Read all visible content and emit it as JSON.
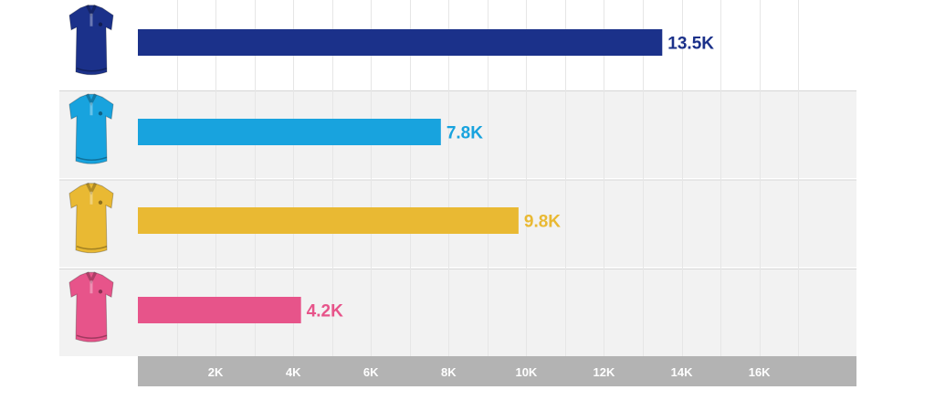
{
  "chart_data": {
    "type": "bar",
    "orientation": "horizontal",
    "categories": [
      "navy polo shirt",
      "turquoise polo shirt",
      "yellow polo shirt",
      "pink polo shirt"
    ],
    "values": [
      13500,
      7800,
      9800,
      4200
    ],
    "value_labels": [
      "13.5K",
      "7.8K",
      "9.8K",
      "4.2K"
    ],
    "colors": [
      "#1b318a",
      "#18a3de",
      "#e9b933",
      "#e7548a"
    ],
    "category_icons": [
      "polo-shirt-icon",
      "polo-shirt-icon",
      "polo-shirt-icon",
      "polo-shirt-icon"
    ],
    "xlim": [
      0,
      18500
    ],
    "x_ticks": [
      2000,
      4000,
      6000,
      8000,
      10000,
      12000,
      14000,
      16000
    ],
    "x_tick_labels": [
      "2K",
      "4K",
      "6K",
      "8K",
      "10K",
      "12K",
      "14K",
      "16K"
    ],
    "grid": true,
    "row_band_colors": [
      "#ffffff",
      "#f2f2f2",
      "#f2f2f2",
      "#f2f2f2"
    ],
    "axis_band_color": "#b3b3b3"
  }
}
